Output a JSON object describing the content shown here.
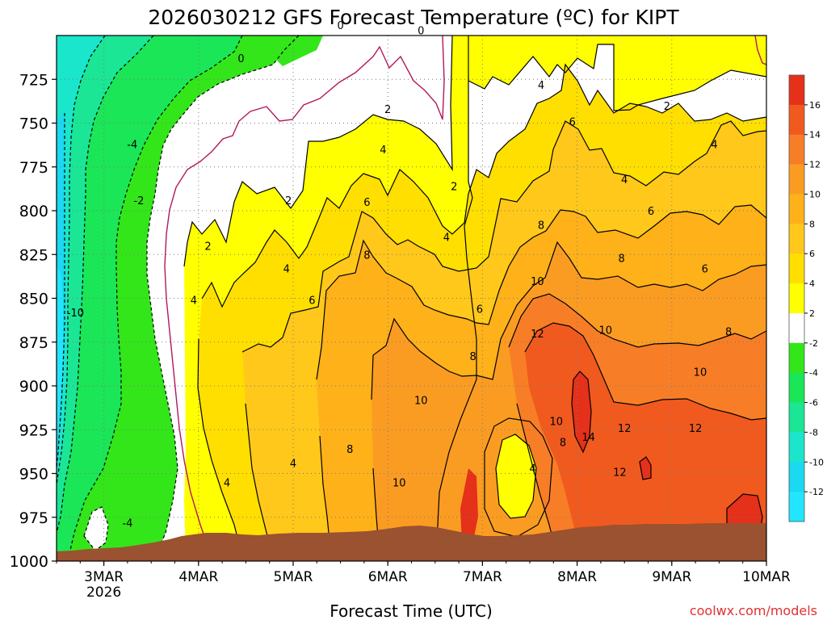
{
  "chart_data": {
    "type": "heatmap",
    "title": "2026030212 GFS Forecast Temperature (ºC) for KIPT",
    "xlabel": "Forecast Time (UTC)",
    "ylabel": "",
    "x_ticks": [
      "3MAR",
      "4MAR",
      "5MAR",
      "6MAR",
      "7MAR",
      "8MAR",
      "9MAR",
      "10MAR"
    ],
    "x_tick_sub": "2026",
    "y_ticks": [
      725,
      750,
      775,
      800,
      825,
      850,
      875,
      900,
      925,
      950,
      975,
      1000
    ],
    "ylim": [
      1000,
      700
    ],
    "xlim": [
      "2026-03-02 12Z",
      "2026-03-10 00Z"
    ],
    "grid": true,
    "colorbar": {
      "ticks": [
        16,
        14,
        12,
        10,
        8,
        6,
        4,
        2,
        -2,
        -4,
        -6,
        -8,
        -10,
        -12
      ],
      "bins": [
        {
          "min": 16,
          "max": 18,
          "color": "#e5301a"
        },
        {
          "min": 14,
          "max": 16,
          "color": "#f05a1e"
        },
        {
          "min": 12,
          "max": 14,
          "color": "#f77e26"
        },
        {
          "min": 10,
          "max": 12,
          "color": "#fb9c22"
        },
        {
          "min": 8,
          "max": 10,
          "color": "#ffb11a"
        },
        {
          "min": 6,
          "max": 8,
          "color": "#ffc81a"
        },
        {
          "min": 4,
          "max": 6,
          "color": "#ffdf00"
        },
        {
          "min": 2,
          "max": 4,
          "color": "#ffff00"
        },
        {
          "min": -2,
          "max": 2,
          "color": "#ffffff"
        },
        {
          "min": -4,
          "max": -2,
          "color": "#33e61a"
        },
        {
          "min": -6,
          "max": -4,
          "color": "#1ae657"
        },
        {
          "min": -8,
          "max": -6,
          "color": "#1ae696"
        },
        {
          "min": -10,
          "max": -8,
          "color": "#1ae6cc"
        },
        {
          "min": -12,
          "max": -10,
          "color": "#1ad9f0"
        },
        {
          "min": -14,
          "max": -12,
          "color": "#22e6ff"
        }
      ]
    },
    "contour_labels": [
      {
        "day": 3.3,
        "p": 762,
        "v": "-4"
      },
      {
        "day": 3.37,
        "p": 794,
        "v": "-2"
      },
      {
        "day": 2.7,
        "p": 858,
        "v": "-10"
      },
      {
        "day": 3.25,
        "p": 978,
        "v": "-4"
      },
      {
        "day": 4.45,
        "p": 713,
        "v": "0"
      },
      {
        "day": 5.5,
        "p": 694,
        "v": "0"
      },
      {
        "day": 6.35,
        "p": 697,
        "v": "0"
      },
      {
        "day": 4.1,
        "p": 820,
        "v": "2"
      },
      {
        "day": 4.95,
        "p": 794,
        "v": "2"
      },
      {
        "day": 6.0,
        "p": 742,
        "v": "2"
      },
      {
        "day": 6.7,
        "p": 786,
        "v": "2"
      },
      {
        "day": 8.95,
        "p": 740,
        "v": "2"
      },
      {
        "day": 3.95,
        "p": 851,
        "v": "4"
      },
      {
        "day": 4.93,
        "p": 833,
        "v": "4"
      },
      {
        "day": 5.95,
        "p": 765,
        "v": "4"
      },
      {
        "day": 6.62,
        "p": 815,
        "v": "4"
      },
      {
        "day": 7.62,
        "p": 728,
        "v": "4"
      },
      {
        "day": 8.5,
        "p": 782,
        "v": "4"
      },
      {
        "day": 9.45,
        "p": 762,
        "v": "4"
      },
      {
        "day": 4.3,
        "p": 955,
        "v": "4"
      },
      {
        "day": 5.0,
        "p": 944,
        "v": "4"
      },
      {
        "day": 7.53,
        "p": 947,
        "v": "4"
      },
      {
        "day": 5.2,
        "p": 851,
        "v": "6"
      },
      {
        "day": 5.78,
        "p": 795,
        "v": "6"
      },
      {
        "day": 6.97,
        "p": 856,
        "v": "6"
      },
      {
        "day": 7.95,
        "p": 749,
        "v": "6"
      },
      {
        "day": 8.78,
        "p": 800,
        "v": "6"
      },
      {
        "day": 9.35,
        "p": 833,
        "v": "6"
      },
      {
        "day": 5.78,
        "p": 825,
        "v": "8"
      },
      {
        "day": 6.9,
        "p": 883,
        "v": "8"
      },
      {
        "day": 7.62,
        "p": 808,
        "v": "8"
      },
      {
        "day": 8.47,
        "p": 827,
        "v": "8"
      },
      {
        "day": 9.6,
        "p": 869,
        "v": "8"
      },
      {
        "day": 5.6,
        "p": 936,
        "v": "8"
      },
      {
        "day": 7.85,
        "p": 932,
        "v": "8"
      },
      {
        "day": 7.58,
        "p": 840,
        "v": "10"
      },
      {
        "day": 8.3,
        "p": 868,
        "v": "10"
      },
      {
        "day": 9.3,
        "p": 892,
        "v": "10"
      },
      {
        "day": 6.35,
        "p": 908,
        "v": "10"
      },
      {
        "day": 6.12,
        "p": 955,
        "v": "10"
      },
      {
        "day": 7.78,
        "p": 920,
        "v": "10"
      },
      {
        "day": 7.58,
        "p": 870,
        "v": "12"
      },
      {
        "day": 8.5,
        "p": 924,
        "v": "12"
      },
      {
        "day": 9.25,
        "p": 924,
        "v": "12"
      },
      {
        "day": 8.45,
        "p": 949,
        "v": "12"
      },
      {
        "day": 8.12,
        "p": 929,
        "v": "14"
      }
    ]
  },
  "colors": {
    "terrain": "#9a5230",
    "zero_contour": "#b2185e",
    "contour": "#000000",
    "grid": "#aaaaaa"
  },
  "footer": {
    "credit": "coolwx.com/models"
  }
}
